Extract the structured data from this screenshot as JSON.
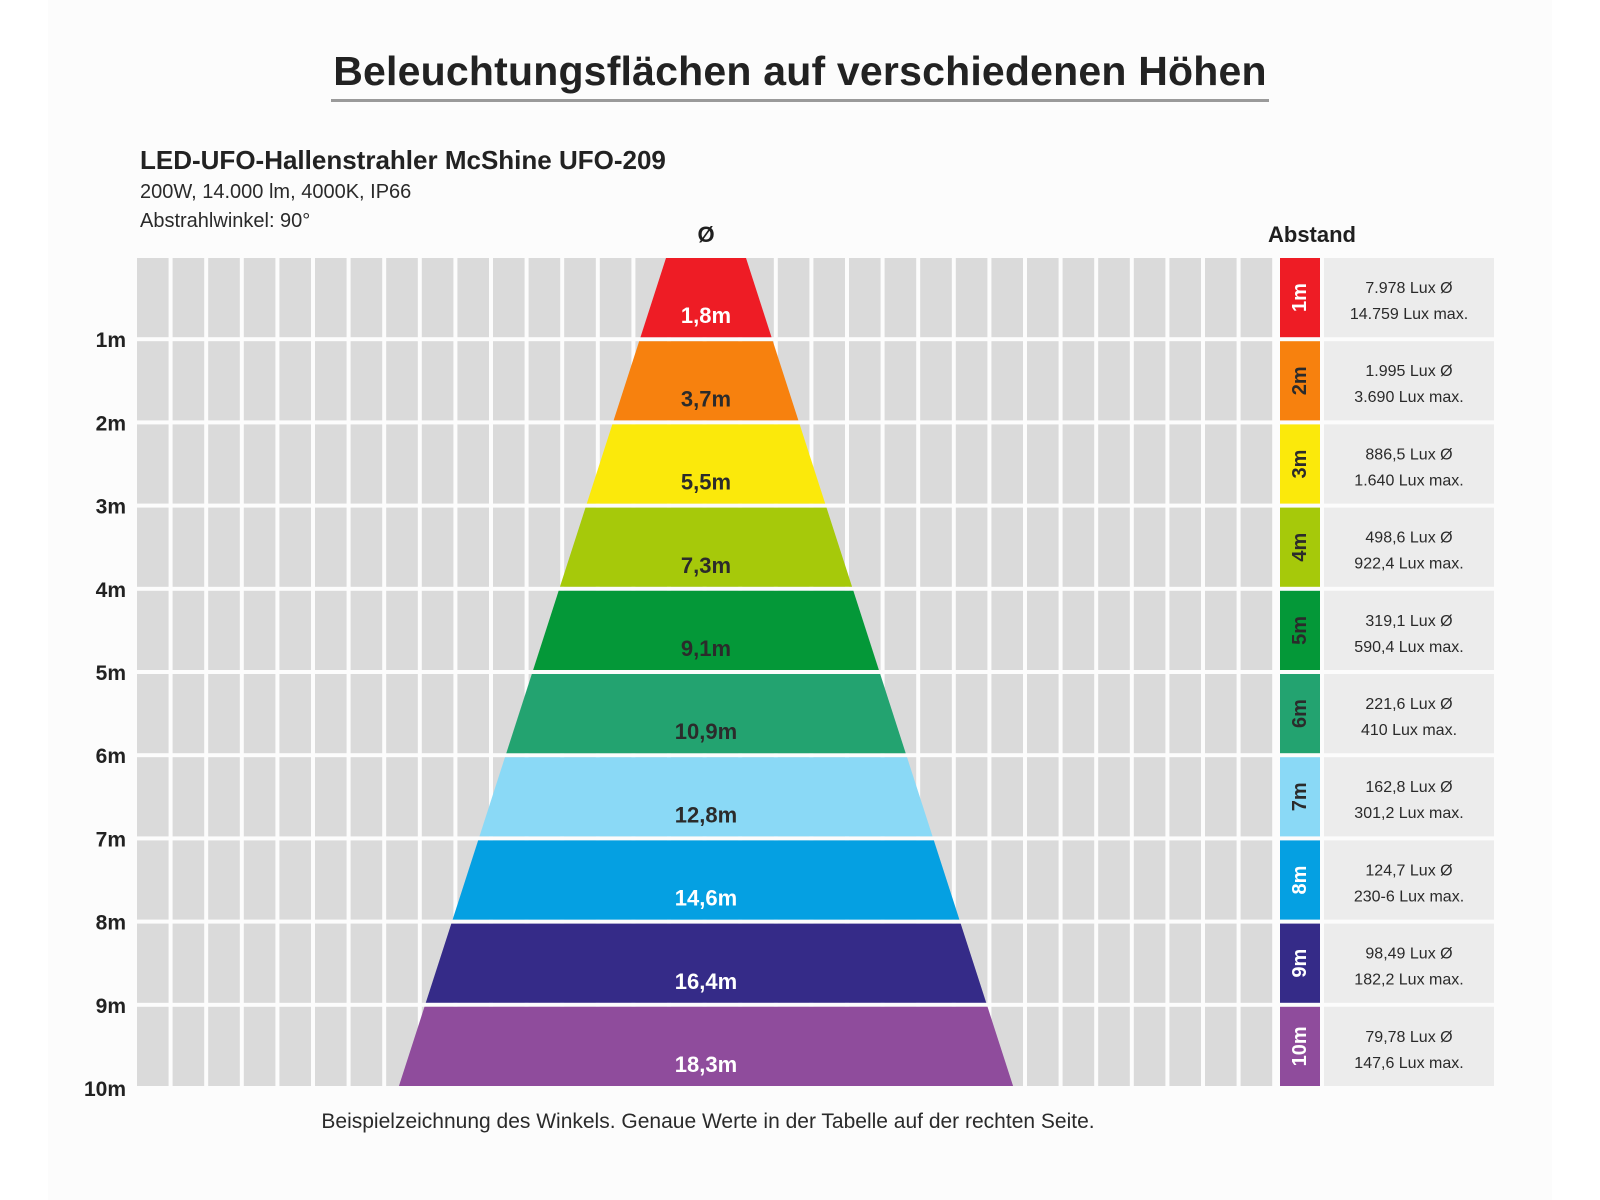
{
  "title": "Beleuchtungsflächen auf verschiedenen Höhen",
  "product": {
    "name": "LED-UFO-Hallenstrahler McShine UFO-209",
    "specs": "200W, 14.000 lm, 4000K, IP66",
    "beam_angle": "Abstrahlwinkel: 90°"
  },
  "headers": {
    "diameter": "Ø",
    "distance": "Abstand"
  },
  "caption": "Beispielzeichnung des Winkels. Genaue Werte in der Tabelle auf der rechten Seite.",
  "chart_data": {
    "type": "table",
    "title": "Beleuchtungsflächen auf verschiedenen Höhen",
    "xlabel": "Ø",
    "ylabel": "Abstand",
    "y_ticks": [
      "1m",
      "2m",
      "3m",
      "4m",
      "5m",
      "6m",
      "7m",
      "8m",
      "9m",
      "10m"
    ],
    "ylim": [
      0,
      10
    ],
    "beam_angle_deg": 90,
    "rows": [
      {
        "height": "1m",
        "height_m": 1,
        "diameter": "1,8m",
        "diameter_m": 1.8,
        "lux_avg": "7.978 Lux Ø",
        "lux_max": "14.759 Lux max.",
        "color": "#ee1c25",
        "label_color": "#ffffff",
        "text_color": "#ffffff"
      },
      {
        "height": "2m",
        "height_m": 2,
        "diameter": "3,7m",
        "diameter_m": 3.7,
        "lux_avg": "1.995 Lux Ø",
        "lux_max": "3.690 Lux max.",
        "color": "#f7810e",
        "label_color": "#2b2b2b",
        "text_color": "#2b2b2b"
      },
      {
        "height": "3m",
        "height_m": 3,
        "diameter": "5,5m",
        "diameter_m": 5.5,
        "lux_avg": "886,5 Lux Ø",
        "lux_max": "1.640 Lux max.",
        "color": "#fbe90b",
        "label_color": "#2b2b2b",
        "text_color": "#2b2b2b"
      },
      {
        "height": "4m",
        "height_m": 4,
        "diameter": "7,3m",
        "diameter_m": 7.3,
        "lux_avg": "498,6 Lux Ø",
        "lux_max": "922,4 Lux max.",
        "color": "#a6c90a",
        "label_color": "#2b2b2b",
        "text_color": "#2b2b2b"
      },
      {
        "height": "5m",
        "height_m": 5,
        "diameter": "9,1m",
        "diameter_m": 9.1,
        "lux_avg": "319,1 Lux Ø",
        "lux_max": "590,4 Lux max.",
        "color": "#049838",
        "label_color": "#2b2b2b",
        "text_color": "#2b2b2b"
      },
      {
        "height": "6m",
        "height_m": 6,
        "diameter": "10,9m",
        "diameter_m": 10.9,
        "lux_avg": "221,6 Lux Ø",
        "lux_max": "410 Lux max.",
        "color": "#23a370",
        "label_color": "#2b2b2b",
        "text_color": "#2b2b2b"
      },
      {
        "height": "7m",
        "height_m": 7,
        "diameter": "12,8m",
        "diameter_m": 12.8,
        "lux_avg": "162,8 Lux Ø",
        "lux_max": "301,2 Lux max.",
        "color": "#8ad9f6",
        "label_color": "#2b2b2b",
        "text_color": "#2b2b2b"
      },
      {
        "height": "8m",
        "height_m": 8,
        "diameter": "14,6m",
        "diameter_m": 14.6,
        "lux_avg": "124,7 Lux Ø",
        "lux_max": "230-6 Lux max.",
        "color": "#05a0e2",
        "label_color": "#ffffff",
        "text_color": "#ffffff"
      },
      {
        "height": "9m",
        "height_m": 9,
        "diameter": "16,4m",
        "diameter_m": 16.4,
        "lux_avg": "98,49 Lux Ø",
        "lux_max": "182,2 Lux max.",
        "color": "#352b88",
        "label_color": "#ffffff",
        "text_color": "#ffffff"
      },
      {
        "height": "10m",
        "height_m": 10,
        "diameter": "18,3m",
        "diameter_m": 18.3,
        "lux_avg": "79,78 Lux Ø",
        "lux_max": "147,6 Lux max.",
        "color": "#8f4c9c",
        "label_color": "#ffffff",
        "text_color": "#ffffff"
      }
    ],
    "grid": true
  },
  "colors": {
    "grid_cell": "#dadada",
    "table_cell": "#ececec",
    "text": "#222222"
  }
}
